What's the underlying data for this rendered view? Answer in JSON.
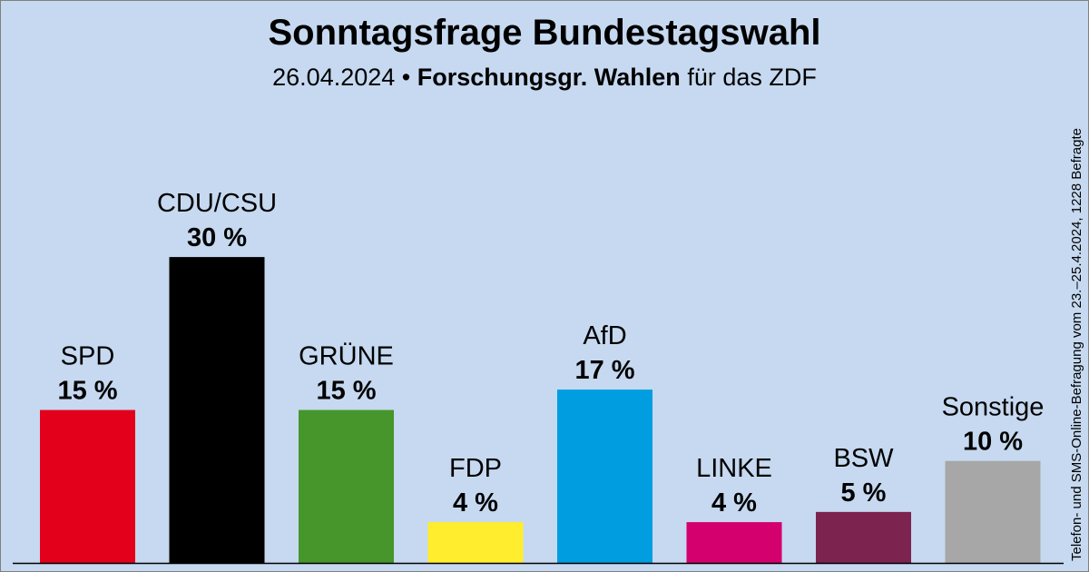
{
  "header": {
    "title": "Sonntagsfrage Bundestagswahl",
    "subtitle_date": "26.04.2024",
    "subtitle_sep": "•",
    "subtitle_institute": "Forschungsgr. Wahlen",
    "subtitle_rest": "für das ZDF"
  },
  "side_note": "Telefon- und SMS-Online-Befragung vom 23.–25.4.2024, 1228 Befragte",
  "chart_data": {
    "type": "bar",
    "title": "Sonntagsfrage Bundestagswahl",
    "xlabel": "",
    "ylabel": "",
    "ylim": [
      0,
      34
    ],
    "grid": false,
    "categories": [
      "SPD",
      "CDU/CSU",
      "GRÜNE",
      "FDP",
      "AfD",
      "LINKE",
      "BSW",
      "Sonstige"
    ],
    "values": [
      15,
      30,
      15,
      4,
      17,
      4,
      5,
      10
    ],
    "value_labels": [
      "15 %",
      "30 %",
      "15 %",
      "4 %",
      "17 %",
      "4 %",
      "5 %",
      "10 %"
    ],
    "colors": [
      "#e3001b",
      "#000000",
      "#46962b",
      "#ffed2e",
      "#009ee0",
      "#d4006e",
      "#7d2350",
      "#a7a7a7"
    ]
  }
}
